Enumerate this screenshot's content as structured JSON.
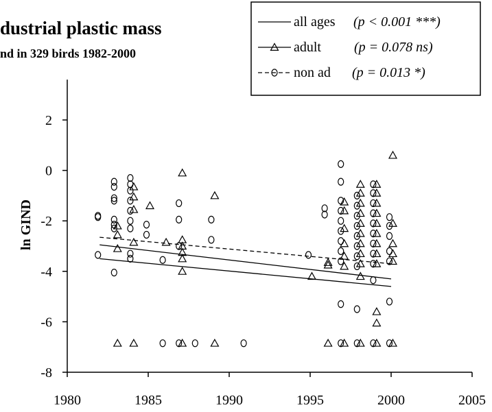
{
  "chart_data": {
    "type": "scatter",
    "title": "dustrial plastic mass",
    "subtitle": "nd in 329 birds 1982-2000",
    "xlabel": "",
    "ylabel": "ln GIND",
    "xlim": [
      1980,
      2005
    ],
    "ylim": [
      -8,
      3.6
    ],
    "xticks": [
      "1980",
      "1985",
      "1990",
      "1995",
      "2000",
      "2005"
    ],
    "yticks": [
      "-8",
      "-6",
      "-4",
      "-2",
      "0",
      "2"
    ],
    "legend": {
      "position": "top-right",
      "entries": [
        {
          "label": "all ages",
          "stat": "(p < 0.001 ***)",
          "style": "solid"
        },
        {
          "label": "adult",
          "stat": "(p = 0.078 ns)",
          "style": "solid-triangle"
        },
        {
          "label": "non ad",
          "stat": "(p = 0.013 *)",
          "style": "dashed-circle"
        }
      ]
    },
    "series": [
      {
        "name": "adult",
        "marker": "triangle",
        "points": [
          [
            1983,
            -2.55
          ],
          [
            1983,
            -3.1
          ],
          [
            1983,
            -2.2
          ],
          [
            1983,
            -6.85
          ],
          [
            1984,
            -0.65
          ],
          [
            1984,
            -1.05
          ],
          [
            1984,
            -1.55
          ],
          [
            1984,
            -2.85
          ],
          [
            1984,
            -6.85
          ],
          [
            1985,
            -1.4
          ],
          [
            1986,
            -2.85
          ],
          [
            1987,
            -0.1
          ],
          [
            1987,
            -2.75
          ],
          [
            1987,
            -3.0
          ],
          [
            1987,
            -3.25
          ],
          [
            1987,
            -3.5
          ],
          [
            1987,
            -4.0
          ],
          [
            1987,
            -6.85
          ],
          [
            1989,
            -1.0
          ],
          [
            1989,
            -6.85
          ],
          [
            1995,
            -4.2
          ],
          [
            1996,
            -3.65
          ],
          [
            1996,
            -3.75
          ],
          [
            1996,
            -6.85
          ],
          [
            1997,
            -1.25
          ],
          [
            1997,
            -1.6
          ],
          [
            1997,
            -2.3
          ],
          [
            1997,
            -2.9
          ],
          [
            1997,
            -3.4
          ],
          [
            1997,
            -3.8
          ],
          [
            1997,
            -6.85
          ],
          [
            1998,
            -0.55
          ],
          [
            1998,
            -0.9
          ],
          [
            1998,
            -1.3
          ],
          [
            1998,
            -1.7
          ],
          [
            1998,
            -2.1
          ],
          [
            1998,
            -2.5
          ],
          [
            1998,
            -2.9
          ],
          [
            1998,
            -3.3
          ],
          [
            1998,
            -3.7
          ],
          [
            1998,
            -4.2
          ],
          [
            1998,
            -6.85
          ],
          [
            1999,
            -0.55
          ],
          [
            1999,
            -0.9
          ],
          [
            1999,
            -1.3
          ],
          [
            1999,
            -1.7
          ],
          [
            1999,
            -2.1
          ],
          [
            1999,
            -2.5
          ],
          [
            1999,
            -2.9
          ],
          [
            1999,
            -3.3
          ],
          [
            1999,
            -3.7
          ],
          [
            1999,
            -5.6
          ],
          [
            1999,
            -6.05
          ],
          [
            1999,
            -6.85
          ],
          [
            2000,
            0.6
          ],
          [
            2000,
            -2.1
          ],
          [
            2000,
            -2.9
          ],
          [
            2000,
            -3.3
          ],
          [
            2000,
            -3.6
          ],
          [
            2000,
            -6.85
          ]
        ]
      },
      {
        "name": "non ad",
        "marker": "circle",
        "points": [
          [
            1982,
            -1.8
          ],
          [
            1982,
            -1.85
          ],
          [
            1982,
            -3.35
          ],
          [
            1983,
            -0.45
          ],
          [
            1983,
            -0.65
          ],
          [
            1983,
            -1.1
          ],
          [
            1983,
            -1.2
          ],
          [
            1983,
            -1.95
          ],
          [
            1983,
            -2.15
          ],
          [
            1983,
            -2.3
          ],
          [
            1983,
            -4.05
          ],
          [
            1984,
            -0.3
          ],
          [
            1984,
            -0.55
          ],
          [
            1984,
            -0.8
          ],
          [
            1984,
            -1.2
          ],
          [
            1984,
            -1.6
          ],
          [
            1984,
            -2.0
          ],
          [
            1984,
            -2.3
          ],
          [
            1984,
            -3.3
          ],
          [
            1984,
            -3.5
          ],
          [
            1985,
            -2.15
          ],
          [
            1985,
            -2.55
          ],
          [
            1986,
            -3.55
          ],
          [
            1986,
            -6.85
          ],
          [
            1987,
            -1.3
          ],
          [
            1987,
            -1.95
          ],
          [
            1987,
            -3.0
          ],
          [
            1987,
            -6.85
          ],
          [
            1988,
            -6.85
          ],
          [
            1989,
            -1.95
          ],
          [
            1989,
            -2.75
          ],
          [
            1991,
            -6.85
          ],
          [
            1995,
            -3.35
          ],
          [
            1996,
            -1.5
          ],
          [
            1996,
            -1.75
          ],
          [
            1997,
            0.25
          ],
          [
            1997,
            -0.45
          ],
          [
            1997,
            -1.2
          ],
          [
            1997,
            -1.6
          ],
          [
            1997,
            -2.0
          ],
          [
            1997,
            -2.4
          ],
          [
            1997,
            -2.8
          ],
          [
            1997,
            -3.2
          ],
          [
            1997,
            -3.6
          ],
          [
            1997,
            -5.3
          ],
          [
            1997,
            -6.85
          ],
          [
            1998,
            -1.0
          ],
          [
            1998,
            -1.4
          ],
          [
            1998,
            -1.8
          ],
          [
            1998,
            -2.2
          ],
          [
            1998,
            -2.6
          ],
          [
            1998,
            -3.0
          ],
          [
            1998,
            -3.4
          ],
          [
            1998,
            -3.8
          ],
          [
            1998,
            -5.5
          ],
          [
            1998,
            -6.85
          ],
          [
            1999,
            -0.55
          ],
          [
            1999,
            -0.9
          ],
          [
            1999,
            -1.3
          ],
          [
            1999,
            -1.7
          ],
          [
            1999,
            -2.1
          ],
          [
            1999,
            -2.5
          ],
          [
            1999,
            -2.9
          ],
          [
            1999,
            -3.3
          ],
          [
            1999,
            -3.7
          ],
          [
            1999,
            -4.35
          ],
          [
            1999,
            -6.85
          ],
          [
            2000,
            -1.85
          ],
          [
            2000,
            -2.2
          ],
          [
            2000,
            -2.6
          ],
          [
            2000,
            -3.2
          ],
          [
            2000,
            -3.6
          ],
          [
            2000,
            -5.2
          ],
          [
            2000,
            -6.85
          ]
        ]
      }
    ],
    "lines": [
      {
        "name": "all ages",
        "style": "solid",
        "points": [
          [
            1982,
            -3.5
          ],
          [
            2000,
            -4.6
          ]
        ]
      },
      {
        "name": "adult",
        "style": "solid",
        "points": [
          [
            1982,
            -2.95
          ],
          [
            2000,
            -4.3
          ]
        ]
      },
      {
        "name": "non ad",
        "style": "dashed",
        "points": [
          [
            1982,
            -2.65
          ],
          [
            2000,
            -3.7
          ]
        ]
      }
    ]
  }
}
